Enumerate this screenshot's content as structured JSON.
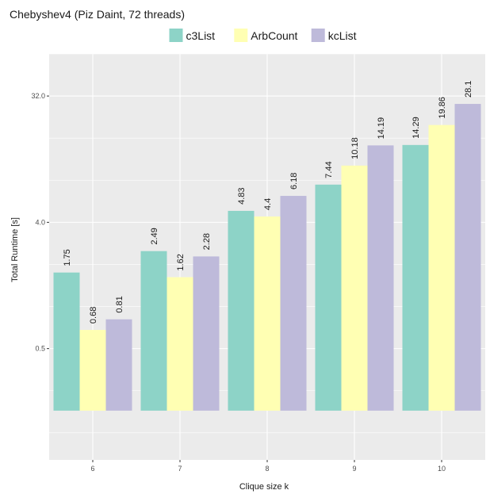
{
  "chart_data": {
    "type": "bar",
    "title": "Chebyshev4 (Piz Daint, 72 threads)",
    "xlabel": "Clique size k",
    "ylabel": "Total Runtime [s]",
    "y_scale": "log2",
    "ylim": [
      0.08,
      64
    ],
    "y_ticks": [
      0.5,
      4.0,
      32.0
    ],
    "y_tick_labels": [
      "0.5",
      "4.0",
      "32.0"
    ],
    "grid": true,
    "legend_position": "top",
    "categories": [
      "6",
      "7",
      "8",
      "9",
      "10"
    ],
    "series": [
      {
        "name": "c3List",
        "color": "#8dd3c7",
        "values": [
          1.75,
          2.49,
          4.83,
          7.44,
          14.29
        ],
        "labels": [
          "1.75",
          "2.49",
          "4.83",
          "7.44",
          "14.29"
        ]
      },
      {
        "name": "ArbCount",
        "color": "#ffffb3",
        "values": [
          0.68,
          1.62,
          4.4,
          10.18,
          19.86
        ],
        "labels": [
          "0.68",
          "1.62",
          "4.4",
          "10.18",
          "19.86"
        ]
      },
      {
        "name": "kcList",
        "color": "#bebada",
        "values": [
          0.81,
          2.28,
          6.18,
          14.19,
          28.1
        ],
        "labels": [
          "0.81",
          "2.28",
          "6.18",
          "14.19",
          "28.1"
        ]
      }
    ]
  }
}
